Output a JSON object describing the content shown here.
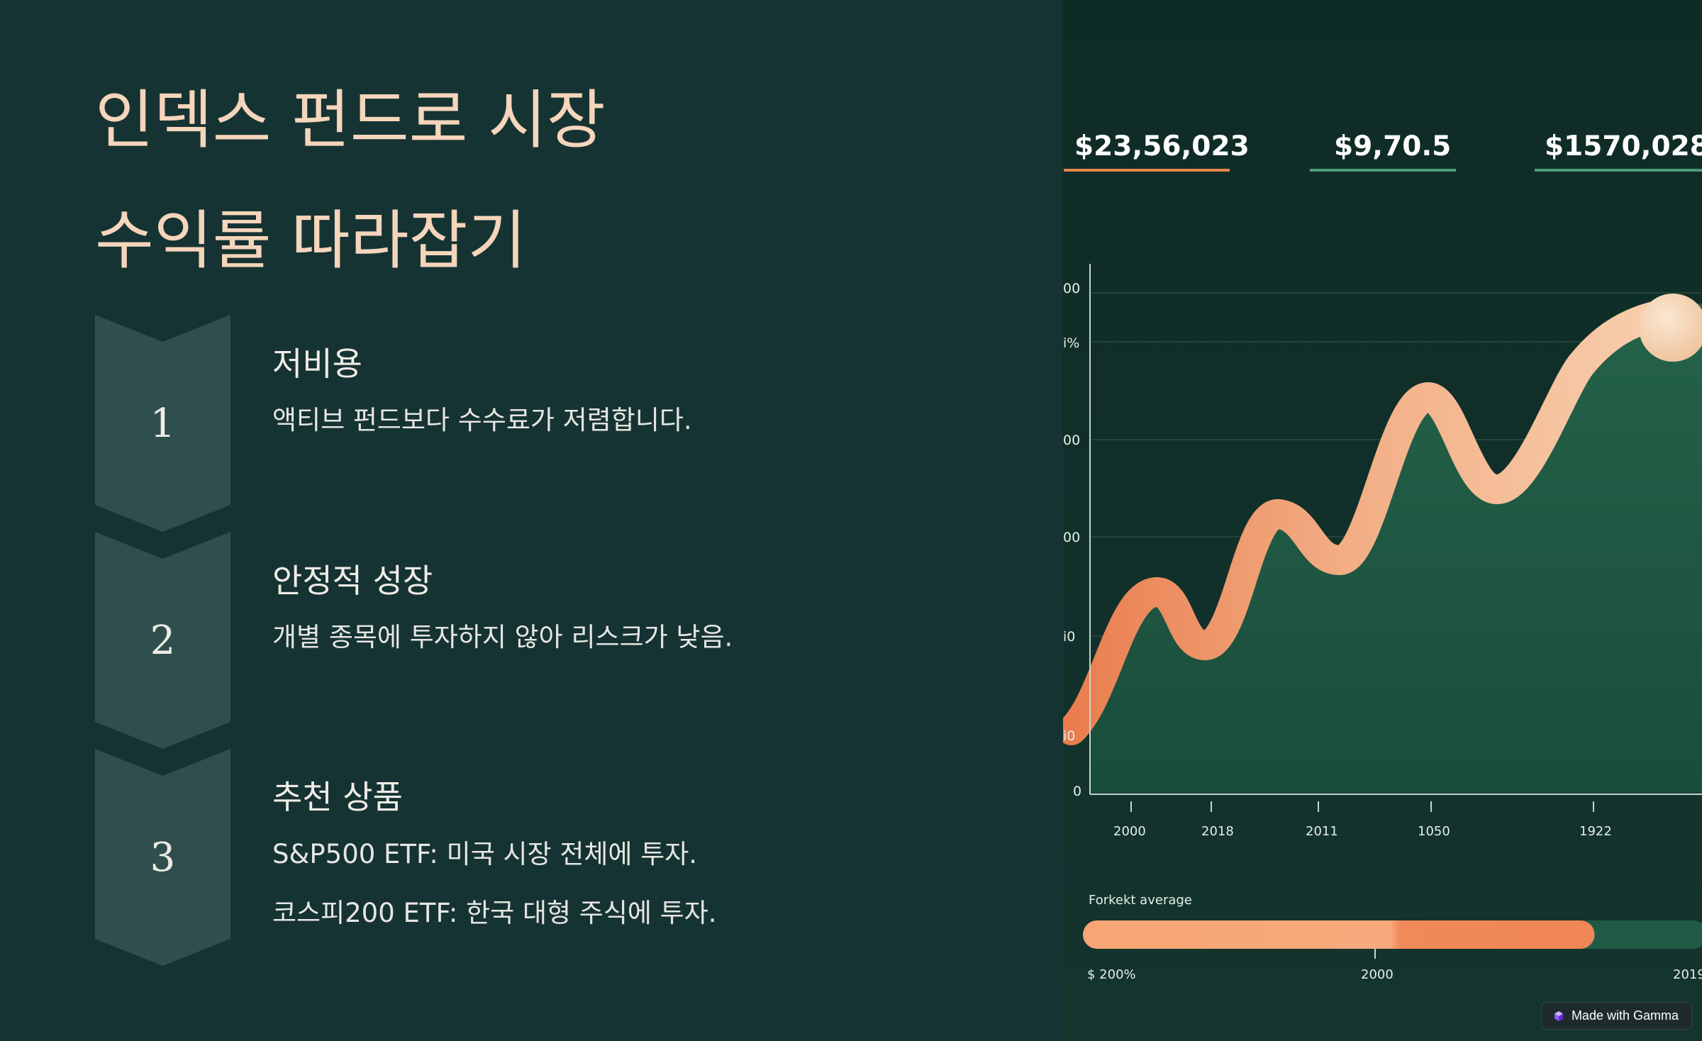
{
  "title": {
    "line1": "인덱스 펀드로 시장",
    "line2": "수익률 따라잡기"
  },
  "steps": [
    {
      "number": "1",
      "title": "저비용",
      "lines": [
        "액티브 펀드보다 수수료가 저렴합니다."
      ]
    },
    {
      "number": "2",
      "title": "안정적 성장",
      "lines": [
        "개별 종목에 투자하지 않아 리스크가 낮음."
      ]
    },
    {
      "number": "3",
      "title": "추천 상품",
      "lines": [
        "S&P500 ETF: 미국 시장 전체에 투자.",
        "코스피200 ETF: 한국 대형 주식에 투자."
      ]
    }
  ],
  "illustration": {
    "stats": [
      {
        "value": "$23,56,023",
        "color": "#e7874d"
      },
      {
        "value": "$9,70.5",
        "color": "#4f9a79"
      },
      {
        "value": "$1570,028",
        "color": "#4f9a79"
      }
    ],
    "y_tick_labels": [
      "00",
      "i%",
      "00",
      "00",
      "i0",
      "i0",
      "0"
    ],
    "x_tick_labels": [
      "2000",
      "2018",
      "2011",
      "1050",
      "1922"
    ],
    "legend_label": "Forkekt average",
    "bar_labels": [
      "$ 200%",
      "2000",
      "2019"
    ],
    "progress_fraction": 0.82,
    "colors": {
      "accent": "#f6a274",
      "area": "#1f5a45",
      "background": "#112d28"
    }
  },
  "badge": {
    "label": "Made with Gamma"
  }
}
